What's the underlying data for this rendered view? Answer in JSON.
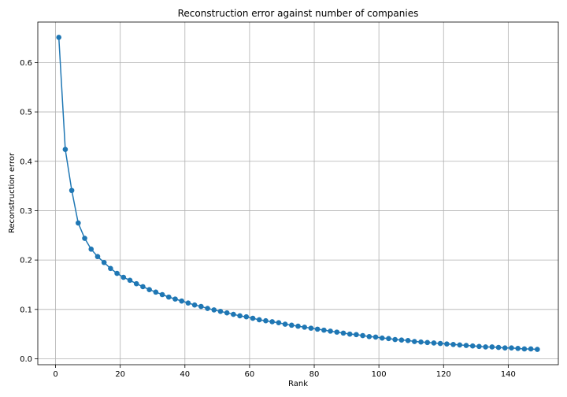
{
  "chart_data": {
    "type": "line",
    "title": "Reconstruction error against number of companies",
    "xlabel": "Rank",
    "ylabel": "Reconstruction error",
    "xlim": [
      -5.5,
      155.5
    ],
    "ylim": [
      -0.012,
      0.682
    ],
    "xticks": [
      0,
      20,
      40,
      60,
      80,
      100,
      120,
      140
    ],
    "yticks": [
      0.0,
      0.1,
      0.2,
      0.3,
      0.4,
      0.5,
      0.6
    ],
    "ytick_labels": [
      "0.0",
      "0.1",
      "0.2",
      "0.3",
      "0.4",
      "0.5",
      "0.6"
    ],
    "grid": true,
    "marker": "circle",
    "colors": {
      "series": "#1f77b4",
      "grid": "#b0b0b0",
      "axis": "#000000"
    },
    "series": [
      {
        "x": [
          1,
          3,
          5,
          7,
          9,
          11,
          13,
          15,
          17,
          19,
          21,
          23,
          25,
          27,
          29,
          31,
          33,
          35,
          37,
          39,
          41,
          43,
          45,
          47,
          49,
          51,
          53,
          55,
          57,
          59,
          61,
          63,
          65,
          67,
          69,
          71,
          73,
          75,
          77,
          79,
          81,
          83,
          85,
          87,
          89,
          91,
          93,
          95,
          97,
          99,
          101,
          103,
          105,
          107,
          109,
          111,
          113,
          115,
          117,
          119,
          121,
          123,
          125,
          127,
          129,
          131,
          133,
          135,
          137,
          139,
          141,
          143,
          145,
          147,
          149
        ],
        "y": [
          0.651,
          0.424,
          0.341,
          0.275,
          0.244,
          0.222,
          0.207,
          0.195,
          0.183,
          0.173,
          0.165,
          0.159,
          0.152,
          0.146,
          0.14,
          0.135,
          0.13,
          0.125,
          0.121,
          0.117,
          0.113,
          0.109,
          0.106,
          0.102,
          0.099,
          0.096,
          0.093,
          0.09,
          0.087,
          0.085,
          0.082,
          0.079,
          0.077,
          0.075,
          0.073,
          0.07,
          0.068,
          0.066,
          0.064,
          0.062,
          0.06,
          0.058,
          0.056,
          0.054,
          0.052,
          0.05,
          0.049,
          0.047,
          0.045,
          0.044,
          0.042,
          0.041,
          0.039,
          0.038,
          0.037,
          0.035,
          0.034,
          0.033,
          0.032,
          0.031,
          0.03,
          0.029,
          0.028,
          0.027,
          0.026,
          0.025,
          0.024,
          0.024,
          0.023,
          0.022,
          0.022,
          0.021,
          0.02,
          0.02,
          0.019
        ]
      }
    ]
  }
}
